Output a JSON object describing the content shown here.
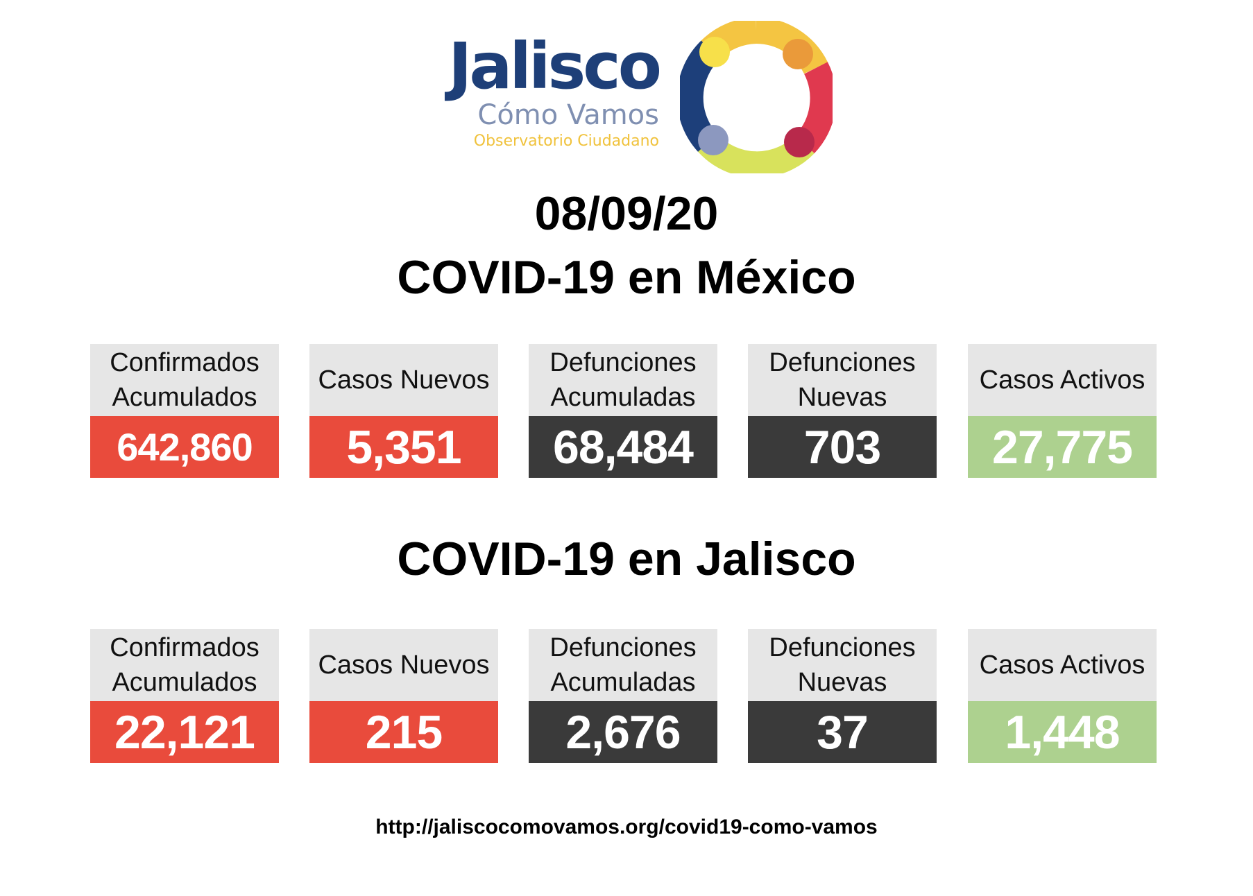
{
  "logo": {
    "title": "Jalisco",
    "subtitle": "Cómo Vamos",
    "tagline": "Observatorio Ciudadano"
  },
  "date": "08/09/20",
  "mexico": {
    "title": "COVID-19 en México",
    "stats": [
      {
        "label_line1": "Confirmados",
        "label_line2": "Acumulados",
        "value": "642,860",
        "color": "#e94b3c"
      },
      {
        "label_line1": "Casos Nuevos",
        "label_line2": "",
        "value": "5,351",
        "color": "#e94b3c"
      },
      {
        "label_line1": "Defunciones",
        "label_line2": "Acumuladas",
        "value": "68,484",
        "color": "#3a3a3a"
      },
      {
        "label_line1": "Defunciones",
        "label_line2": "Nuevas",
        "value": "703",
        "color": "#3a3a3a"
      },
      {
        "label_line1": "Casos Activos",
        "label_line2": "",
        "value": "27,775",
        "color": "#add18f"
      }
    ]
  },
  "jalisco": {
    "title": "COVID-19 en Jalisco",
    "stats": [
      {
        "label_line1": "Confirmados",
        "label_line2": "Acumulados",
        "value": "22,121",
        "color": "#e94b3c"
      },
      {
        "label_line1": "Casos Nuevos",
        "label_line2": "",
        "value": "215",
        "color": "#e94b3c"
      },
      {
        "label_line1": "Defunciones",
        "label_line2": "Acumuladas",
        "value": "2,676",
        "color": "#3a3a3a"
      },
      {
        "label_line1": "Defunciones",
        "label_line2": "Nuevas",
        "value": "37",
        "color": "#3a3a3a"
      },
      {
        "label_line1": "Casos Activos",
        "label_line2": "",
        "value": "1,448",
        "color": "#add18f"
      }
    ]
  },
  "footer": {
    "url": "http://jaliscocomovamos.org/covid19-como-vamos"
  },
  "colors": {
    "logo_blue": "#1e3f78",
    "ring_yellow": "#f4c542",
    "ring_orange": "#ea9a3a",
    "ring_red": "#e0394f",
    "ring_lime": "#d8e25c",
    "ring_navy": "#1d3f7a"
  }
}
